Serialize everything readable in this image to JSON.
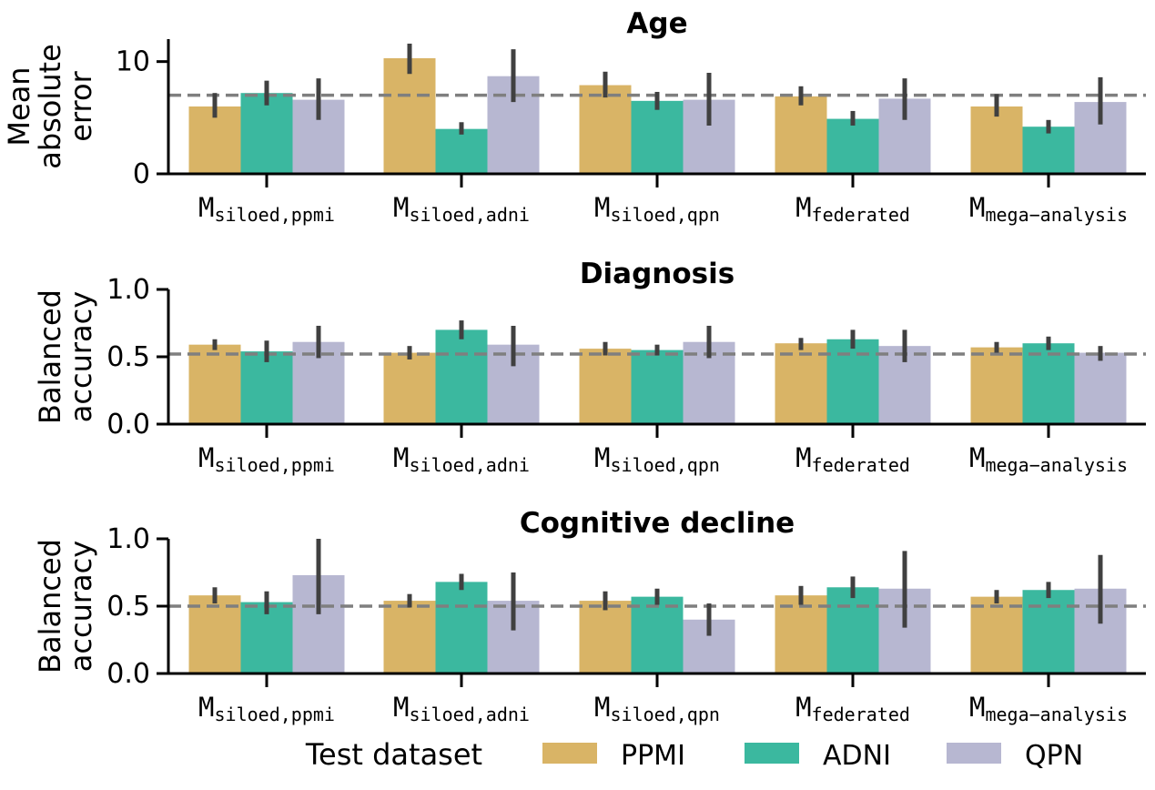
{
  "colors": {
    "PPMI": "#d9b466",
    "ADNI": "#3bb89f",
    "QPN": "#b7b7d1",
    "errorbar": "#404040",
    "reference": "#7f7f7f"
  },
  "category_labels": [
    {
      "main": "M",
      "sub": "siloed,ppmi"
    },
    {
      "main": "M",
      "sub": "siloed,adni"
    },
    {
      "main": "M",
      "sub": "siloed,qpn"
    },
    {
      "main": "M",
      "sub": "federated"
    },
    {
      "main": "M",
      "sub": "mega−analysis"
    }
  ],
  "legend": {
    "title": "Test dataset",
    "entries": [
      "PPMI",
      "ADNI",
      "QPN"
    ]
  },
  "chart_data": [
    {
      "type": "bar",
      "title": "Age",
      "ylabel_lines": [
        "Mean",
        "absolute",
        "error"
      ],
      "categories": [
        "siloed,ppmi",
        "siloed,adni",
        "siloed,qpn",
        "federated",
        "mega−analysis"
      ],
      "ylim": [
        0,
        12
      ],
      "yticks": [
        0,
        10
      ],
      "ytick_labels": [
        "0",
        "10"
      ],
      "reference_line": 7.0,
      "series": [
        {
          "name": "PPMI",
          "values": [
            6.0,
            10.3,
            7.9,
            6.9,
            6.0
          ],
          "err_low": [
            5.0,
            8.9,
            6.8,
            6.1,
            5.1
          ],
          "err_high": [
            7.2,
            11.6,
            9.1,
            7.8,
            7.1
          ]
        },
        {
          "name": "ADNI",
          "values": [
            7.2,
            4.0,
            6.5,
            4.9,
            4.2
          ],
          "err_low": [
            6.1,
            3.5,
            5.7,
            4.3,
            3.6
          ],
          "err_high": [
            8.3,
            4.6,
            7.3,
            5.6,
            4.8
          ]
        },
        {
          "name": "QPN",
          "values": [
            6.6,
            8.7,
            6.6,
            6.7,
            6.4
          ],
          "err_low": [
            4.8,
            6.4,
            4.3,
            4.8,
            4.4
          ],
          "err_high": [
            8.5,
            11.1,
            9.0,
            8.5,
            8.6
          ]
        }
      ]
    },
    {
      "type": "bar",
      "title": "Diagnosis",
      "ylabel_lines": [
        "Balanced",
        "accuracy"
      ],
      "categories": [
        "siloed,ppmi",
        "siloed,adni",
        "siloed,qpn",
        "federated",
        "mega−analysis"
      ],
      "ylim": [
        0,
        1.0
      ],
      "yticks": [
        0,
        0.5,
        1.0
      ],
      "ytick_labels": [
        "0.0",
        "0.5",
        "1.0"
      ],
      "reference_line": 0.52,
      "series": [
        {
          "name": "PPMI",
          "values": [
            0.59,
            0.53,
            0.56,
            0.6,
            0.57
          ],
          "err_low": [
            0.55,
            0.48,
            0.51,
            0.55,
            0.53
          ],
          "err_high": [
            0.63,
            0.58,
            0.61,
            0.64,
            0.61
          ]
        },
        {
          "name": "ADNI",
          "values": [
            0.54,
            0.7,
            0.55,
            0.63,
            0.6
          ],
          "err_low": [
            0.46,
            0.63,
            0.51,
            0.56,
            0.55
          ],
          "err_high": [
            0.62,
            0.77,
            0.59,
            0.7,
            0.65
          ]
        },
        {
          "name": "QPN",
          "values": [
            0.61,
            0.59,
            0.61,
            0.58,
            0.53
          ],
          "err_low": [
            0.49,
            0.43,
            0.49,
            0.46,
            0.47
          ],
          "err_high": [
            0.73,
            0.73,
            0.73,
            0.7,
            0.58
          ]
        }
      ]
    },
    {
      "type": "bar",
      "title": "Cognitive decline",
      "ylabel_lines": [
        "Balanced",
        "accuracy"
      ],
      "categories": [
        "siloed,ppmi",
        "siloed,adni",
        "siloed,qpn",
        "federated",
        "mega−analysis"
      ],
      "ylim": [
        0,
        1.0
      ],
      "yticks": [
        0,
        0.5,
        1.0
      ],
      "ytick_labels": [
        "0.0",
        "0.5",
        "1.0"
      ],
      "reference_line": 0.5,
      "series": [
        {
          "name": "PPMI",
          "values": [
            0.58,
            0.54,
            0.54,
            0.58,
            0.57
          ],
          "err_low": [
            0.52,
            0.49,
            0.47,
            0.51,
            0.52
          ],
          "err_high": [
            0.64,
            0.59,
            0.61,
            0.65,
            0.62
          ]
        },
        {
          "name": "ADNI",
          "values": [
            0.53,
            0.68,
            0.57,
            0.64,
            0.62
          ],
          "err_low": [
            0.44,
            0.62,
            0.51,
            0.56,
            0.56
          ],
          "err_high": [
            0.61,
            0.74,
            0.63,
            0.72,
            0.68
          ]
        },
        {
          "name": "QPN",
          "values": [
            0.73,
            0.54,
            0.4,
            0.63,
            0.63
          ],
          "err_low": [
            0.44,
            0.32,
            0.28,
            0.34,
            0.37
          ],
          "err_high": [
            1.0,
            0.75,
            0.52,
            0.91,
            0.88
          ]
        }
      ]
    }
  ]
}
